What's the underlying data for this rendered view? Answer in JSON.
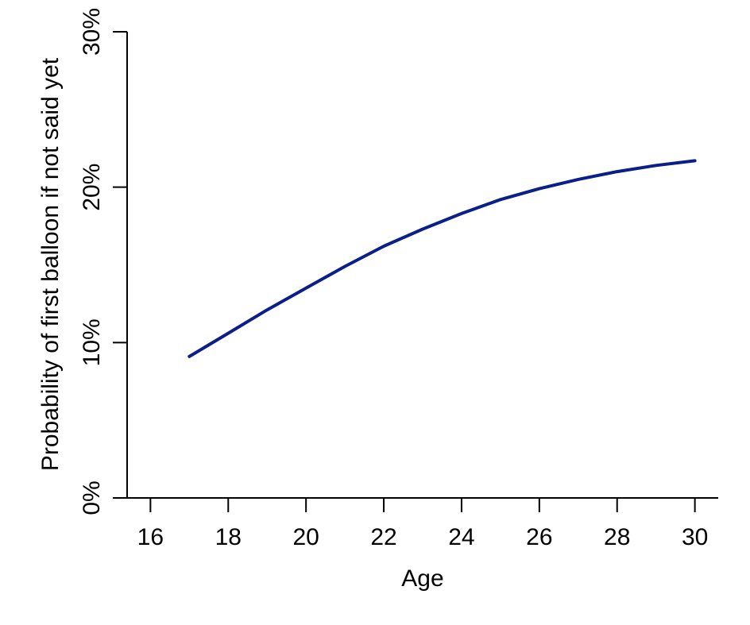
{
  "chart_data": {
    "type": "line",
    "title": "",
    "xlabel": "Age",
    "ylabel": "Probability of first balloon if not said yet",
    "xlim": [
      15.4,
      30.6
    ],
    "ylim": [
      0,
      30
    ],
    "x_ticks": [
      16,
      18,
      20,
      22,
      24,
      26,
      28,
      30
    ],
    "x_tick_labels": [
      "16",
      "18",
      "20",
      "22",
      "24",
      "26",
      "28",
      "30"
    ],
    "y_ticks": [
      0,
      10,
      20,
      30
    ],
    "y_tick_labels": [
      "0%",
      "10%",
      "20%",
      "30%"
    ],
    "grid": false,
    "legend": "none",
    "series": [
      {
        "color": "#0b1f8a",
        "x": [
          17,
          18,
          19,
          20,
          21,
          22,
          23,
          24,
          25,
          26,
          27,
          28,
          29,
          30
        ],
        "y": [
          9.1,
          10.6,
          12.1,
          13.5,
          14.9,
          16.2,
          17.3,
          18.3,
          19.2,
          19.9,
          20.5,
          21.0,
          21.4,
          21.7
        ]
      }
    ]
  }
}
